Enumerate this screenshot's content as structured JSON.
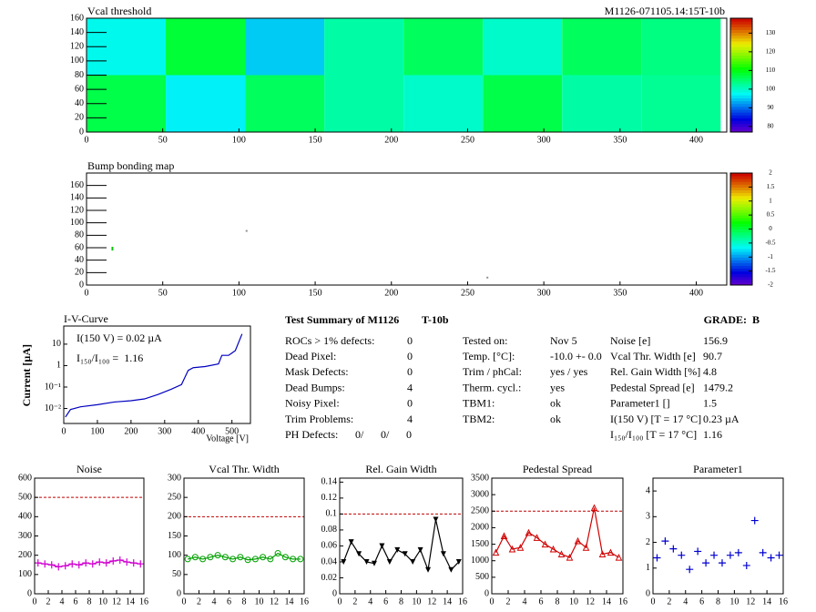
{
  "chart_data": [
    {
      "type": "heatmap",
      "title": "Vcal threshold",
      "subtitle": "M1126-071105.14:15T-10b",
      "xbins": [
        0,
        52,
        104,
        156,
        208,
        260,
        312,
        364,
        416
      ],
      "ybins": [
        0,
        80,
        160
      ],
      "values": [
        [
          107,
          97,
          106,
          102,
          100,
          107,
          102,
          103
        ],
        [
          98,
          108,
          95,
          102,
          106,
          100,
          106,
          104
        ]
      ],
      "xlim": [
        0,
        420
      ],
      "xticks": [
        0,
        50,
        100,
        150,
        200,
        250,
        300,
        350,
        400
      ],
      "ylim": [
        0,
        160
      ],
      "yticks": [
        0,
        20,
        40,
        60,
        80,
        100,
        120,
        140,
        160
      ],
      "zlim": [
        77,
        138
      ],
      "zticks": [
        80,
        90,
        100,
        110,
        120,
        130
      ]
    },
    {
      "type": "scatter",
      "title": "Bump bonding map",
      "marker": "dot",
      "x": [
        17,
        17,
        105,
        263
      ],
      "values": [
        57,
        60,
        87,
        12
      ],
      "colors": [
        "#00c000",
        "#00c000",
        "#909090",
        "#909090"
      ],
      "xlim": [
        0,
        420
      ],
      "xticks": [
        0,
        50,
        100,
        150,
        200,
        250,
        300,
        350,
        400
      ],
      "ylim": [
        0,
        180
      ],
      "yticks": [
        0,
        20,
        40,
        60,
        80,
        100,
        120,
        140,
        160
      ],
      "zlim": [
        -2,
        2
      ],
      "zticks": [
        -2,
        -1.5,
        -1,
        -0.5,
        0,
        0.5,
        1,
        1.5,
        2
      ]
    },
    {
      "type": "line",
      "title": "I-V-Curve",
      "x_label": "Voltage [V]",
      "y_label": "Current [µA]",
      "color": "#0000c0",
      "annotations": [
        "I(150 V) = 0.02 µA",
        "I₁₅₀/I₁₀₀ =  1.16"
      ],
      "x": [
        5,
        20,
        50,
        100,
        150,
        200,
        240,
        280,
        320,
        350,
        370,
        385,
        420,
        460,
        470,
        490,
        510,
        530
      ],
      "values": [
        0.004,
        0.009,
        0.012,
        0.015,
        0.02,
        0.023,
        0.028,
        0.045,
        0.08,
        0.13,
        0.6,
        0.8,
        0.9,
        1.2,
        3,
        3,
        5,
        30
      ],
      "log_y": true,
      "xlim": [
        0,
        555
      ],
      "xticks": [
        0,
        100,
        200,
        300,
        400,
        500
      ],
      "ylim": [
        0.002,
        70
      ],
      "yticks": [
        {
          "value": 0.01,
          "label": "10⁻²"
        },
        {
          "value": 0.1,
          "label": "10⁻¹"
        },
        1,
        10
      ]
    },
    {
      "type": "line",
      "title": "Noise",
      "color": "#d000d0",
      "marker": "cross",
      "threshold": 500,
      "x": [
        0.5,
        1.5,
        2.5,
        3.5,
        4.5,
        5.5,
        6.5,
        7.5,
        8.5,
        9.5,
        10.5,
        11.5,
        12.5,
        13.5,
        14.5,
        15.5
      ],
      "values": [
        160,
        155,
        150,
        140,
        145,
        155,
        150,
        160,
        155,
        165,
        160,
        170,
        175,
        165,
        160,
        155
      ],
      "xlim": [
        0,
        16
      ],
      "xticks": [
        0,
        2,
        4,
        6,
        8,
        10,
        12,
        14,
        16
      ],
      "ylim": [
        0,
        600
      ],
      "yticks": [
        0,
        100,
        200,
        300,
        400,
        500,
        600
      ]
    },
    {
      "type": "line",
      "title": "Vcal Thr. Width",
      "color": "#00a000",
      "marker": "circle",
      "threshold": 200,
      "x": [
        0.5,
        1.5,
        2.5,
        3.5,
        4.5,
        5.5,
        6.5,
        7.5,
        8.5,
        9.5,
        10.5,
        11.5,
        12.5,
        13.5,
        14.5,
        15.5
      ],
      "values": [
        90,
        95,
        90,
        95,
        100,
        95,
        90,
        95,
        88,
        90,
        95,
        90,
        105,
        95,
        90,
        90
      ],
      "xlim": [
        0,
        16
      ],
      "xticks": [
        0,
        2,
        4,
        6,
        8,
        10,
        12,
        14,
        16
      ],
      "ylim": [
        0,
        300
      ],
      "yticks": [
        0,
        50,
        100,
        150,
        200,
        250,
        300
      ]
    },
    {
      "type": "line",
      "title": "Rel. Gain Width",
      "color": "#000000",
      "marker": "triangle-down",
      "threshold": 0.1,
      "x": [
        0.5,
        1.5,
        2.5,
        3.5,
        4.5,
        5.5,
        6.5,
        7.5,
        8.5,
        9.5,
        10.5,
        11.5,
        12.5,
        13.5,
        14.5,
        15.5
      ],
      "values": [
        0.04,
        0.065,
        0.05,
        0.04,
        0.038,
        0.06,
        0.04,
        0.055,
        0.05,
        0.04,
        0.055,
        0.03,
        0.093,
        0.05,
        0.03,
        0.04
      ],
      "xlim": [
        0,
        16
      ],
      "xticks": [
        0,
        2,
        4,
        6,
        8,
        10,
        12,
        14,
        16
      ],
      "ylim": [
        0,
        0.145
      ],
      "yticks": [
        0,
        0.02,
        0.04,
        0.06,
        0.08,
        0.1,
        0.12,
        0.14
      ]
    },
    {
      "type": "line",
      "title": "Pedestal Spread",
      "color": "#d00000",
      "marker": "triangle-up",
      "threshold": 2500,
      "x": [
        0.5,
        1.5,
        2.5,
        3.5,
        4.5,
        5.5,
        6.5,
        7.5,
        8.5,
        9.5,
        10.5,
        11.5,
        12.5,
        13.5,
        14.5,
        15.5
      ],
      "values": [
        1250,
        1750,
        1350,
        1400,
        1850,
        1700,
        1500,
        1350,
        1200,
        1100,
        1600,
        1400,
        2600,
        1200,
        1250,
        1100
      ],
      "xlim": [
        0,
        16
      ],
      "xticks": [
        0,
        2,
        4,
        6,
        8,
        10,
        12,
        14,
        16
      ],
      "ylim": [
        0,
        3500
      ],
      "yticks": [
        0,
        500,
        1000,
        1500,
        2000,
        2500,
        3000,
        3500
      ]
    },
    {
      "type": "scatter",
      "title": "Parameter1",
      "color": "#0000d0",
      "marker": "cross",
      "x": [
        0.5,
        1.5,
        2.5,
        3.5,
        4.5,
        5.5,
        6.5,
        7.5,
        8.5,
        9.5,
        10.5,
        11.5,
        12.5,
        13.5,
        14.5,
        15.5
      ],
      "values": [
        1.4,
        2.05,
        1.75,
        1.5,
        0.95,
        1.65,
        1.2,
        1.5,
        1.2,
        1.5,
        1.6,
        1.1,
        2.85,
        1.6,
        1.4,
        1.5
      ],
      "xlim": [
        0,
        16
      ],
      "xticks": [
        0,
        2,
        4,
        6,
        8,
        10,
        12,
        14,
        16
      ],
      "ylim": [
        0,
        4.5
      ],
      "yticks": [
        0,
        1,
        2,
        3,
        4
      ]
    }
  ],
  "summary": {
    "title": "Test Summary of M1126",
    "module_type": "T-10b",
    "grade": "GRADE:  B",
    "left_rows": [
      {
        "label": "ROCs > 1% defects:",
        "value": "0"
      },
      {
        "label": "Dead Pixel:",
        "value": "0"
      },
      {
        "label": "Mask Defects:",
        "value": "0"
      },
      {
        "label": "Dead Bumps:",
        "value": "4"
      },
      {
        "label": "Noisy Pixel:",
        "value": "0"
      },
      {
        "label": "Trim Problems:",
        "value": "4"
      }
    ],
    "ph_defects": {
      "label": "PH Defects:",
      "values": [
        "0/",
        "0/",
        "0"
      ],
      "colors": [
        "#000000",
        "#e00000",
        "#0000c0"
      ]
    },
    "middle_rows": [
      {
        "label": "Tested on:",
        "value": "Nov 5"
      },
      {
        "label": "Temp. [°C]:",
        "value": "-10.0 +- 0.0"
      },
      {
        "label": "Trim / phCal:",
        "value": "yes / yes"
      },
      {
        "label": "Therm. cycl.:",
        "value": "yes"
      },
      {
        "label": "TBM1:",
        "value": "ok"
      },
      {
        "label": "TBM2:",
        "value": "ok"
      }
    ],
    "right_rows": [
      {
        "label": "Noise [e]",
        "value": "156.9"
      },
      {
        "label": "Vcal Thr. Width [e]",
        "value": "90.7"
      },
      {
        "label": "Rel. Gain Width [%]",
        "value": "4.8"
      },
      {
        "label": "Pedestal Spread [e]",
        "value": "1479.2"
      },
      {
        "label": "Parameter1 []",
        "value": "1.5"
      },
      {
        "label": "I(150 V) [T = 17 °C]",
        "value": "0.23 µA"
      },
      {
        "label": "I₁₅₀/I₁₀₀ [T = 17 °C]",
        "value": "1.16"
      }
    ]
  }
}
